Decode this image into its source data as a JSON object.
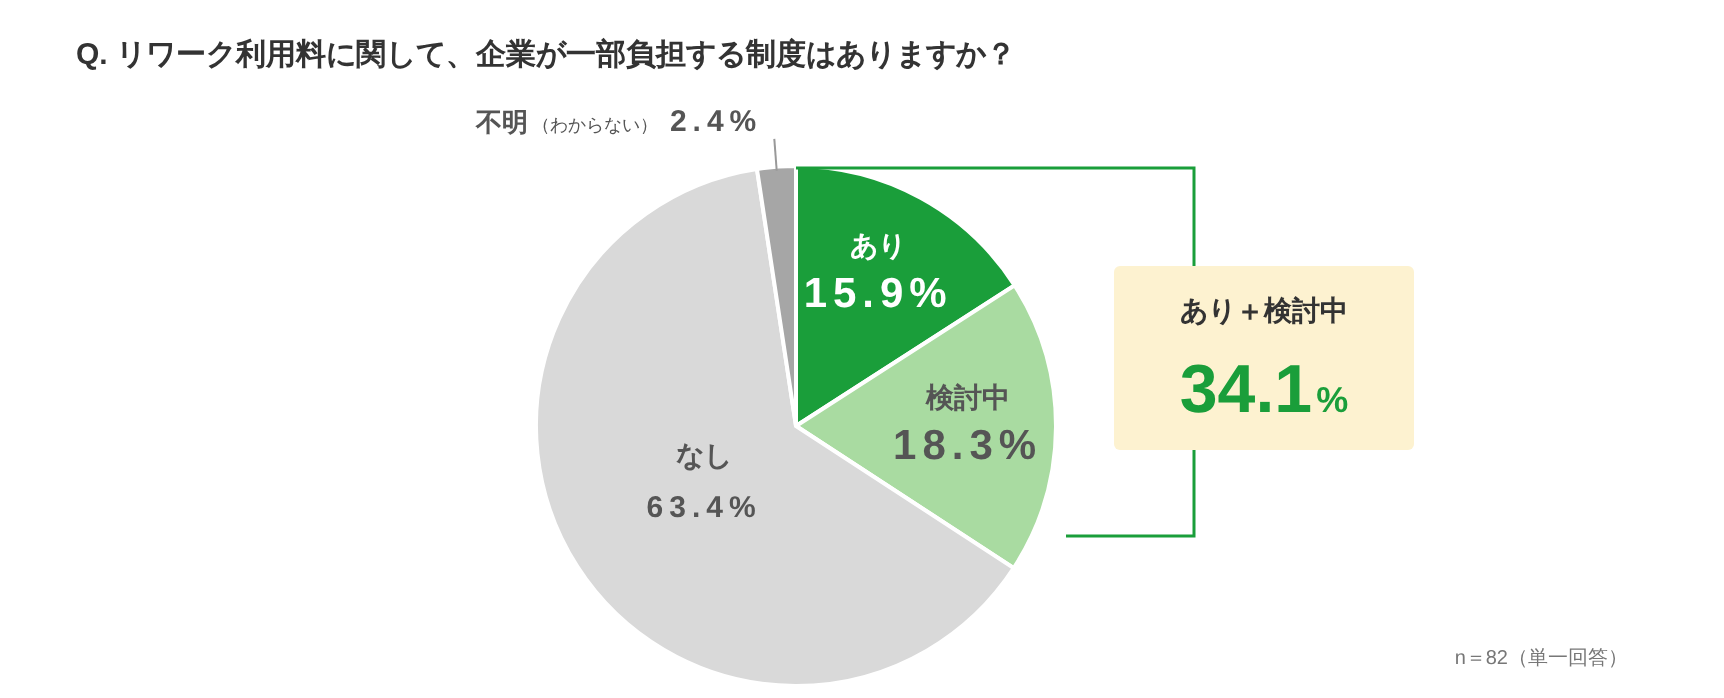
{
  "chart_data": {
    "type": "pie",
    "title": "Q. リワーク利用料に関して、企業が一部負担する制度はありますか？",
    "categories": [
      "あり",
      "検討中",
      "なし",
      "不明（わからない）"
    ],
    "values": [
      15.9,
      18.3,
      63.4,
      2.4
    ],
    "colors": [
      "#1a9e3a",
      "#a9dba1",
      "#d9d9d9",
      "#a6a6a6"
    ],
    "value_labels": [
      "15.9%",
      "18.3%",
      "63.4%",
      "2.4%"
    ],
    "annotations": [
      "あり＋検討中",
      "34.1%",
      "n＝82（単一回答）"
    ]
  }
}
